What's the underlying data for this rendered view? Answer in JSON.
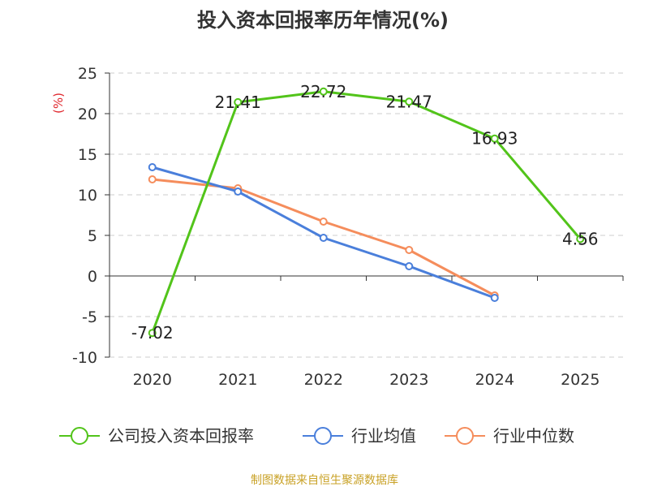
{
  "chart_data": {
    "type": "line",
    "title": "投入资本回报率历年情况(%)",
    "ylabel": "(%)",
    "categories": [
      "2020",
      "2021",
      "2022",
      "2023",
      "2024",
      "2025"
    ],
    "ylim": [
      -10,
      25
    ],
    "yticks": [
      25,
      20,
      15,
      10,
      5,
      0,
      -5,
      -10
    ],
    "grid": true,
    "legend_position": "bottom",
    "series": [
      {
        "name": "公司投入资本回报率",
        "color": "#52c41a",
        "values": [
          -7.02,
          21.41,
          22.72,
          21.47,
          16.93,
          4.56
        ],
        "labels": [
          "-7.02",
          "21.41",
          "22.72",
          "21.47",
          "16.93",
          "4.56"
        ]
      },
      {
        "name": "行业均值",
        "color": "#4a7fdb",
        "values": [
          13.4,
          10.4,
          4.7,
          1.2,
          -2.7,
          null
        ]
      },
      {
        "name": "行业中位数",
        "color": "#f58d5c",
        "values": [
          11.9,
          10.8,
          6.7,
          3.2,
          -2.4,
          null
        ]
      }
    ]
  },
  "footer": {
    "source": "制图数据来自恒生聚源数据库"
  }
}
